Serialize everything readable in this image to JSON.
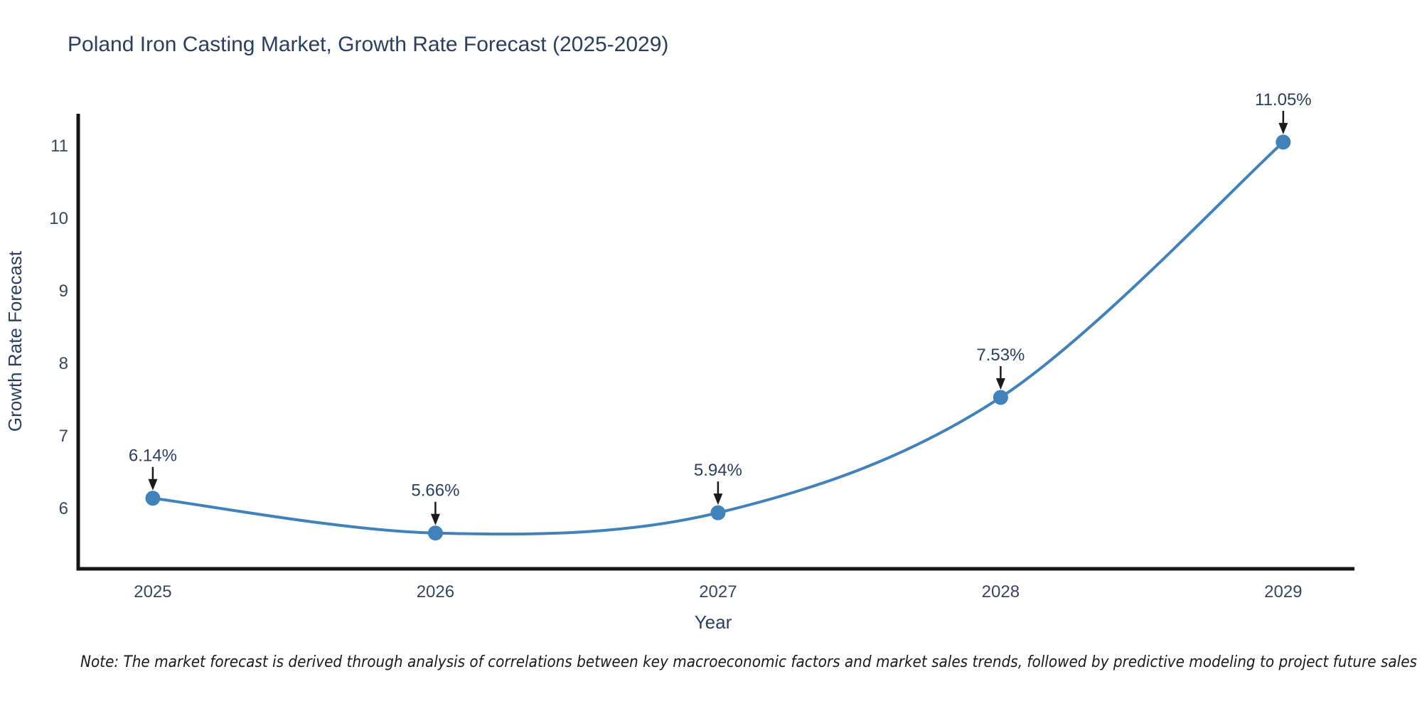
{
  "title": "Poland Iron Casting Market, Growth Rate Forecast (2025-2029)",
  "note": "Note: The market forecast is derived through analysis of correlations between key macroeconomic factors and market sales trends, followed by predictive modeling to project future sales",
  "chart_data": {
    "type": "line",
    "title": "Poland Iron Casting Market, Growth Rate Forecast (2025-2029)",
    "xlabel": "Year",
    "ylabel": "Growth Rate Forecast",
    "categories": [
      2025,
      2026,
      2027,
      2028,
      2029
    ],
    "values": [
      6.14,
      5.66,
      5.94,
      7.53,
      11.05
    ],
    "point_labels": [
      "6.14%",
      "5.66%",
      "5.94%",
      "7.53%",
      "11.05%"
    ],
    "y_ticks": [
      6,
      7,
      8,
      9,
      10,
      11
    ],
    "xlim": [
      2024.736,
      2029.252
    ],
    "ylim": [
      5.167,
      11.441
    ],
    "line_shape": "spline",
    "line_color": "#4182ba",
    "line_width": 4,
    "marker_color": "#4182ba",
    "marker_radius": 10.5,
    "annotation_color": "#2a3f5f",
    "arrow_color": "#1a1a1a",
    "grid": false,
    "legend": false
  }
}
